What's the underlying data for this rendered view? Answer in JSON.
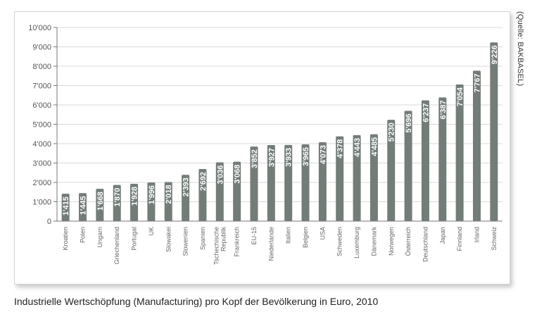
{
  "caption": "Industrielle Wertschöpfung (Manufacturing) pro Kopf der Bevölkerung in Euro, 2010",
  "source_note": "(Quelle: BAKBASEL)",
  "colors": {
    "bar": "#737d77",
    "grid": "#d9d9d9",
    "axis": "#777777",
    "panel_border": "#d4d4d4"
  },
  "chart_data": {
    "type": "bar",
    "title": "Industrielle Wertschöpfung (Manufacturing) pro Kopf der Bevölkerung in Euro, 2010",
    "xlabel": "",
    "ylabel": "",
    "ylim": [
      0,
      10000
    ],
    "yticks": [
      0,
      1000,
      2000,
      3000,
      4000,
      5000,
      6000,
      7000,
      8000,
      9000,
      10000
    ],
    "ytick_labels": [
      "0",
      "1'000",
      "2'000",
      "3'000",
      "4'000",
      "5'000",
      "6'000",
      "7'000",
      "8'000",
      "9'000",
      "10'000"
    ],
    "grid": true,
    "categories": [
      "Kroatien",
      "Polen",
      "Ungarn",
      "Griechenland",
      "Portugal",
      "UK",
      "Slowakei",
      "Slowenien",
      "Spanien",
      "Tschechische Republik",
      "Frankreich",
      "EU-15",
      "Niederlande",
      "Italien",
      "Belgien",
      "USA",
      "Schweden",
      "Luxemburg",
      "Dänemark",
      "Norwegen",
      "Österreich",
      "Deutschland",
      "Japan",
      "Finnland",
      "Irland",
      "Schweiz"
    ],
    "values": [
      1415,
      1445,
      1668,
      1870,
      1928,
      1996,
      2018,
      2393,
      2692,
      3036,
      3068,
      3852,
      3927,
      3933,
      3965,
      4073,
      4378,
      4443,
      4485,
      5230,
      5696,
      6237,
      6387,
      7054,
      7767,
      9226
    ],
    "value_labels": [
      "1'415",
      "1'445",
      "1'668",
      "1'870",
      "1'928",
      "1'996",
      "2'018",
      "2'393",
      "2'692",
      "3'036",
      "3'068",
      "3'852",
      "3'927",
      "3'933",
      "3'965",
      "4'073",
      "4'378",
      "4'443",
      "4'485",
      "5'230",
      "5'696",
      "6'237",
      "6'387",
      "7'054",
      "7'767",
      "9'226"
    ]
  }
}
